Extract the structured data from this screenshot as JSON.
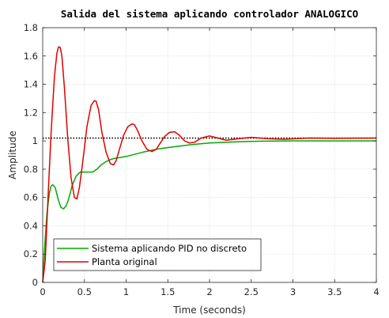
{
  "chart_data": {
    "type": "line",
    "title": "Salida del sistema aplicando controlador ANALOGICO",
    "xlabel": "Time (seconds)",
    "ylabel": "Amplitude",
    "xlim": [
      0,
      4
    ],
    "ylim": [
      0,
      1.8
    ],
    "x_ticks": [
      "0",
      "0.5",
      "1",
      "1.5",
      "2",
      "2.5",
      "3",
      "3.5",
      "4"
    ],
    "y_ticks": [
      "0",
      "0.2",
      "0.4",
      "0.6",
      "0.8",
      "1",
      "1.2",
      "1.4",
      "1.6",
      "1.8"
    ],
    "grid": true,
    "legend_position": "bottom-left",
    "reference_line": {
      "y": 1.02,
      "color": "#000000",
      "style": "dotted"
    },
    "series": [
      {
        "name": "Sistema aplicando PID no discreto",
        "color": "#00aa00",
        "x": [
          0,
          0.02,
          0.05,
          0.08,
          0.1,
          0.12,
          0.15,
          0.18,
          0.2,
          0.22,
          0.25,
          0.28,
          0.3,
          0.33,
          0.35,
          0.4,
          0.45,
          0.5,
          0.55,
          0.6,
          0.65,
          0.7,
          0.75,
          0.8,
          0.85,
          0.9,
          1.0,
          1.2,
          1.4,
          1.6,
          1.8,
          2.0,
          2.2,
          2.4,
          2.6,
          3.0,
          3.5,
          4.0
        ],
        "y": [
          0,
          0.22,
          0.48,
          0.63,
          0.68,
          0.69,
          0.67,
          0.6,
          0.56,
          0.53,
          0.52,
          0.54,
          0.57,
          0.63,
          0.68,
          0.75,
          0.78,
          0.78,
          0.78,
          0.78,
          0.8,
          0.83,
          0.85,
          0.865,
          0.875,
          0.88,
          0.89,
          0.92,
          0.945,
          0.96,
          0.975,
          0.985,
          0.99,
          0.995,
          0.998,
          1.0,
          1.0,
          1.0
        ]
      },
      {
        "name": "Planta original",
        "color": "#e00000",
        "x": [
          0,
          0.03,
          0.06,
          0.1,
          0.14,
          0.17,
          0.19,
          0.21,
          0.23,
          0.26,
          0.3,
          0.34,
          0.38,
          0.41,
          0.44,
          0.48,
          0.53,
          0.58,
          0.62,
          0.64,
          0.67,
          0.71,
          0.76,
          0.81,
          0.85,
          0.88,
          0.92,
          0.97,
          1.02,
          1.07,
          1.1,
          1.14,
          1.19,
          1.25,
          1.31,
          1.36,
          1.41,
          1.46,
          1.52,
          1.58,
          1.64,
          1.7,
          1.76,
          1.82,
          1.9,
          2.0,
          2.1,
          2.2,
          2.35,
          2.5,
          2.7,
          2.9,
          3.2,
          3.5,
          4.0
        ],
        "y": [
          0,
          0.15,
          0.55,
          1.05,
          1.45,
          1.62,
          1.665,
          1.66,
          1.6,
          1.38,
          1.02,
          0.74,
          0.6,
          0.59,
          0.67,
          0.85,
          1.1,
          1.25,
          1.285,
          1.28,
          1.22,
          1.06,
          0.92,
          0.84,
          0.83,
          0.86,
          0.94,
          1.04,
          1.1,
          1.12,
          1.115,
          1.07,
          1.0,
          0.94,
          0.925,
          0.94,
          0.985,
          1.03,
          1.06,
          1.065,
          1.04,
          1.0,
          0.985,
          0.99,
          1.02,
          1.035,
          1.02,
          1.005,
          1.015,
          1.025,
          1.015,
          1.012,
          1.02,
          1.018,
          1.02
        ]
      }
    ]
  }
}
